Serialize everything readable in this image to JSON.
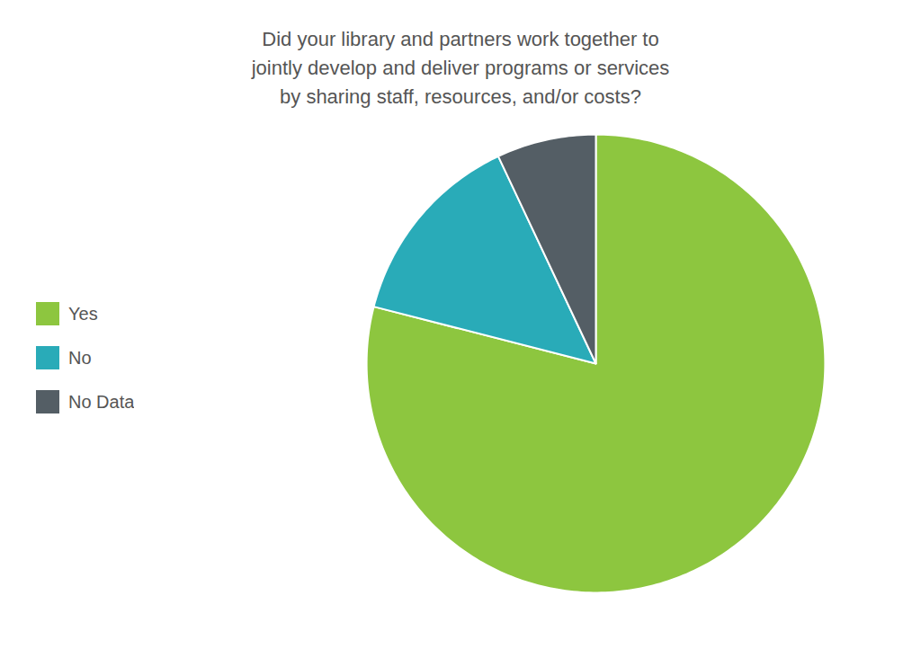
{
  "chart_data": {
    "type": "pie",
    "title": "Did your library and partners work together to\njointly develop and deliver programs or services\nby sharing staff, resources, and/or costs?",
    "categories": [
      "Yes",
      "No",
      "No Data"
    ],
    "values": [
      79,
      14,
      7
    ],
    "colors": [
      "#8DC63F",
      "#29ABB8",
      "#545E65"
    ],
    "legend": "left"
  }
}
